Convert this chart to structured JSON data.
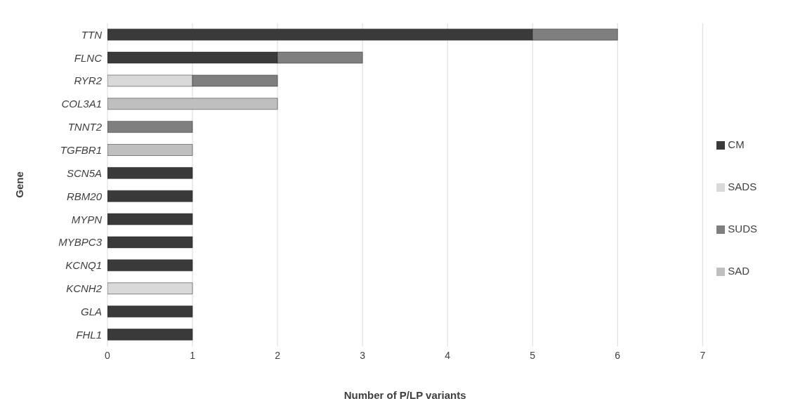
{
  "chart_data": {
    "type": "bar",
    "orientation": "horizontal",
    "stacked": true,
    "xlabel": "Number of P/LP variants",
    "ylabel": "Gene",
    "categories": [
      "TTN",
      "FLNC",
      "RYR2",
      "COL3A1",
      "TNNT2",
      "TGFBR1",
      "SCN5A",
      "RBM20",
      "MYPN",
      "MYBPC3",
      "KCNQ1",
      "KCNH2",
      "GLA",
      "FHL1"
    ],
    "series": [
      {
        "name": "CM",
        "color": "#3a3a3a",
        "values": [
          5,
          2,
          0,
          0,
          0,
          0,
          1,
          1,
          1,
          1,
          1,
          0,
          1,
          1
        ]
      },
      {
        "name": "SADS",
        "color": "#d9d9d9",
        "values": [
          0,
          0,
          1,
          0,
          0,
          0,
          0,
          0,
          0,
          0,
          0,
          1,
          0,
          0
        ]
      },
      {
        "name": "SUDS",
        "color": "#7f7f7f",
        "values": [
          1,
          1,
          1,
          0,
          1,
          0,
          0,
          0,
          0,
          0,
          0,
          0,
          0,
          0
        ]
      },
      {
        "name": "SAD",
        "color": "#bfbfbf",
        "values": [
          0,
          0,
          0,
          2,
          0,
          1,
          0,
          0,
          0,
          0,
          0,
          0,
          0,
          0
        ]
      }
    ],
    "xlim": [
      0,
      7
    ],
    "xticks": [
      0,
      1,
      2,
      3,
      4,
      5,
      6,
      7
    ],
    "grid": "x",
    "legend": "right"
  }
}
